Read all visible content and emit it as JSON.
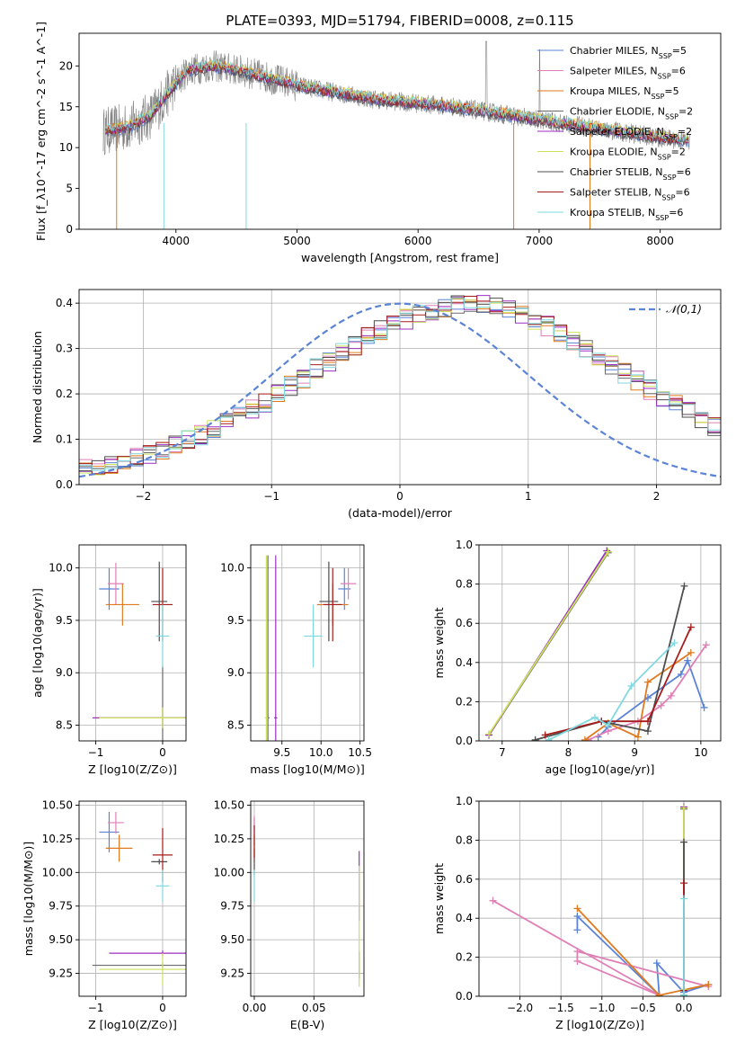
{
  "figure": {
    "title": "PLATE=0393, MJD=51794, FIBERID=0008, z=0.115"
  },
  "colors": {
    "Chabrier MILES": "#5b84d6",
    "Salpeter MILES": "#e07fb6",
    "Kroupa MILES": "#e07a1f",
    "Chabrier ELODIE": "#6a6a6a",
    "Salpeter ELODIE": "#9a2fc0",
    "Kroupa ELODIE": "#cde25a",
    "Chabrier STELIB": "#4d4d4d",
    "Salpeter STELIB": "#a61c1c",
    "Kroupa STELIB": "#80d9e0",
    "normal": "#5b84d6",
    "data": "#808080"
  },
  "chart_data": [
    {
      "id": "spectrum",
      "type": "line",
      "xlabel": "wavelength [Angstrom, rest frame]",
      "ylabel": "Flux [f_λ10^-17 erg cm^-2 s^-1 A^-1]",
      "xlim": [
        3200,
        8500
      ],
      "ylim": [
        0,
        24
      ],
      "xticks": [
        4000,
        5000,
        6000,
        7000,
        8000
      ],
      "yticks": [
        0,
        5,
        10,
        15,
        20
      ],
      "legend_position": "top-right",
      "series": [
        {
          "name": "Chabrier MILES, N_SSP=5"
        },
        {
          "name": "Salpeter MILES, N_SSP=6"
        },
        {
          "name": "Kroupa MILES, N_SSP=5"
        },
        {
          "name": "Chabrier ELODIE, N_SSP=2"
        },
        {
          "name": "Salpeter ELODIE, N_SSP=2"
        },
        {
          "name": "Kroupa ELODIE, N_SSP=2"
        },
        {
          "name": "Chabrier STELIB, N_SSP=6"
        },
        {
          "name": "Salpeter STELIB, N_SSP=6"
        },
        {
          "name": "Kroupa STELIB, N_SSP=6"
        }
      ],
      "model_continuum": {
        "x": [
          3400,
          3600,
          3800,
          3950,
          4100,
          4300,
          4500,
          4700,
          5000,
          5300,
          5600,
          6000,
          6300,
          6600,
          7000,
          7500,
          8000,
          8250
        ],
        "y": [
          12.0,
          12.5,
          14.0,
          17.0,
          19.5,
          20.0,
          19.5,
          18.8,
          17.6,
          16.8,
          16.0,
          15.4,
          15.0,
          14.3,
          13.4,
          12.3,
          11.2,
          10.8
        ]
      }
    },
    {
      "id": "residuals",
      "type": "step",
      "xlabel": "(data-model)/error",
      "ylabel": "Normed distribution",
      "xlim": [
        -2.5,
        2.5
      ],
      "ylim": [
        0,
        0.43
      ],
      "xticks": [
        -2,
        -1,
        0,
        1,
        2
      ],
      "yticks": [
        0.0,
        0.1,
        0.2,
        0.3,
        0.4
      ],
      "legend": "𝒩(0,1)",
      "bin_width": 0.1,
      "x0": -2.5,
      "base_counts": [
        0.035,
        0.038,
        0.045,
        0.052,
        0.06,
        0.068,
        0.078,
        0.09,
        0.1,
        0.11,
        0.122,
        0.135,
        0.15,
        0.165,
        0.18,
        0.2,
        0.218,
        0.235,
        0.255,
        0.272,
        0.29,
        0.305,
        0.325,
        0.34,
        0.355,
        0.365,
        0.375,
        0.385,
        0.392,
        0.398,
        0.4,
        0.398,
        0.393,
        0.385,
        0.375,
        0.362,
        0.35,
        0.335,
        0.318,
        0.3,
        0.282,
        0.262,
        0.245,
        0.228,
        0.21,
        0.192,
        0.176,
        0.16,
        0.145,
        0.13,
        0.118,
        0.106,
        0.094,
        0.084,
        0.074,
        0.066,
        0.058,
        0.052,
        0.046,
        0.04,
        0.036,
        0.032,
        0.029,
        0.026,
        0.024,
        0.022,
        0.02,
        0.018,
        0.017,
        0.016
      ]
    },
    {
      "id": "age_vs_Z",
      "type": "errorbar",
      "xlabel": "Z [log10(Z/Z⊙)]",
      "ylabel": "age [log10(age/yr)]",
      "xlim": [
        -1.25,
        0.35
      ],
      "ylim": [
        8.35,
        10.22
      ],
      "xticks": [
        -1,
        0
      ],
      "yticks": [
        8.5,
        9.0,
        9.5,
        10.0
      ],
      "points": [
        {
          "series": "Chabrier MILES",
          "x": -0.8,
          "y": 9.8,
          "xerr": 0.15,
          "yerr": 0.2
        },
        {
          "series": "Salpeter MILES",
          "x": -0.7,
          "y": 9.85,
          "xerr": 0.12,
          "yerr": 0.2
        },
        {
          "series": "Kroupa MILES",
          "x": -0.6,
          "y": 9.65,
          "xerr": 0.25,
          "yerr": 0.2
        },
        {
          "series": "Chabrier ELODIE",
          "x": 0.0,
          "y": 8.57,
          "xerr": 0.95,
          "yerr": 0.5
        },
        {
          "series": "Salpeter ELODIE",
          "x": 0.0,
          "y": 8.57,
          "xerr": 1.05,
          "yerr": 0.1
        },
        {
          "series": "Kroupa ELODIE",
          "x": 0.0,
          "y": 8.57,
          "xerr": 0.95,
          "yerr": 0.1
        },
        {
          "series": "Chabrier STELIB",
          "x": -0.05,
          "y": 9.68,
          "xerr": 0.12,
          "yerr": 0.38
        },
        {
          "series": "Salpeter STELIB",
          "x": 0.0,
          "y": 9.65,
          "xerr": 0.15,
          "yerr": 0.35
        },
        {
          "series": "Kroupa STELIB",
          "x": 0.0,
          "y": 9.35,
          "xerr": 0.1,
          "yerr": 0.3
        }
      ]
    },
    {
      "id": "age_vs_mass",
      "type": "errorbar",
      "xlabel": "mass [log10(M/M⊙)]",
      "ylabel": "",
      "xlim": [
        9.1,
        10.55
      ],
      "ylim": [
        8.35,
        10.22
      ],
      "xticks": [
        9.5,
        10.0,
        10.5
      ],
      "yticks": [
        8.5,
        9.0,
        9.5,
        10.0
      ],
      "points": [
        {
          "series": "Chabrier MILES",
          "x": 10.3,
          "y": 9.8,
          "xerr": 0.08,
          "yerr": 0.2
        },
        {
          "series": "Salpeter MILES",
          "x": 10.35,
          "y": 9.85,
          "xerr": 0.1,
          "yerr": 0.15
        },
        {
          "series": "Kroupa MILES",
          "x": 10.15,
          "y": 9.65,
          "xerr": 0.2,
          "yerr": 0.2
        },
        {
          "series": "Chabrier ELODIE",
          "x": 9.32,
          "y": 8.57,
          "xerr": 0.02,
          "yerr": 1.55
        },
        {
          "series": "Salpeter ELODIE",
          "x": 9.42,
          "y": 8.57,
          "xerr": 0.02,
          "yerr": 1.55
        },
        {
          "series": "Kroupa ELODIE",
          "x": 9.3,
          "y": 8.57,
          "xerr": 0.02,
          "yerr": 1.55
        },
        {
          "series": "Chabrier STELIB",
          "x": 10.1,
          "y": 9.68,
          "xerr": 0.12,
          "yerr": 0.38
        },
        {
          "series": "Salpeter STELIB",
          "x": 10.15,
          "y": 9.65,
          "xerr": 0.12,
          "yerr": 0.35
        },
        {
          "series": "Kroupa STELIB",
          "x": 9.9,
          "y": 9.35,
          "xerr": 0.12,
          "yerr": 0.3
        }
      ]
    },
    {
      "id": "weight_vs_age",
      "type": "line",
      "xlabel": "age [log10(age/yr)]",
      "ylabel": "mass weight",
      "xlim": [
        6.65,
        10.3
      ],
      "ylim": [
        0,
        1.0
      ],
      "xticks": [
        7,
        8,
        9,
        10
      ],
      "yticks": [
        0.0,
        0.2,
        0.4,
        0.6,
        0.8,
        1.0
      ],
      "series": [
        {
          "series": "Chabrier MILES",
          "x": [
            8.45,
            8.6,
            9.2,
            9.7,
            9.8,
            10.05
          ],
          "y": [
            0.02,
            0.07,
            0.22,
            0.34,
            0.41,
            0.17
          ]
        },
        {
          "series": "Salpeter MILES",
          "x": [
            8.3,
            8.6,
            9.05,
            9.4,
            9.55,
            10.08
          ],
          "y": [
            0.005,
            0.05,
            0.1,
            0.18,
            0.23,
            0.49
          ]
        },
        {
          "series": "Kroupa MILES",
          "x": [
            8.25,
            8.6,
            9.05,
            9.2,
            9.85
          ],
          "y": [
            0.005,
            0.09,
            0.02,
            0.3,
            0.45
          ]
        },
        {
          "series": "Chabrier ELODIE",
          "x": [
            6.8,
            8.6
          ],
          "y": [
            0.03,
            0.96
          ]
        },
        {
          "series": "Salpeter ELODIE",
          "x": [
            6.8,
            8.58
          ],
          "y": [
            0.03,
            0.97
          ]
        },
        {
          "series": "Kroupa ELODIE",
          "x": [
            6.8,
            8.6
          ],
          "y": [
            0.035,
            0.965
          ]
        },
        {
          "series": "Chabrier STELIB",
          "x": [
            7.5,
            8.5,
            9.2,
            9.75
          ],
          "y": [
            0.005,
            0.1,
            0.05,
            0.79
          ]
        },
        {
          "series": "Salpeter STELIB",
          "x": [
            7.65,
            8.5,
            9.2,
            9.85
          ],
          "y": [
            0.03,
            0.1,
            0.1,
            0.58
          ]
        },
        {
          "series": "Kroupa STELIB",
          "x": [
            7.7,
            8.4,
            8.6,
            8.95,
            9.6
          ],
          "y": [
            0.005,
            0.12,
            0.08,
            0.28,
            0.5
          ]
        }
      ]
    },
    {
      "id": "mass_vs_Z",
      "type": "errorbar",
      "xlabel": "Z [log10(Z/Z⊙)]",
      "ylabel": "mass [log10(M/M⊙)]",
      "xlim": [
        -1.25,
        0.35
      ],
      "ylim": [
        9.08,
        10.53
      ],
      "xticks": [
        -1,
        0
      ],
      "yticks": [
        9.25,
        9.5,
        9.75,
        10.0,
        10.25,
        10.5
      ],
      "points": [
        {
          "series": "Chabrier MILES",
          "x": -0.8,
          "y": 10.3,
          "xerr": 0.15,
          "yerr": 0.15
        },
        {
          "series": "Salpeter MILES",
          "x": -0.7,
          "y": 10.37,
          "xerr": 0.12,
          "yerr": 0.08
        },
        {
          "series": "Kroupa MILES",
          "x": -0.65,
          "y": 10.18,
          "xerr": 0.2,
          "yerr": 0.1
        },
        {
          "series": "Chabrier ELODIE",
          "x": 0.0,
          "y": 9.31,
          "xerr": 1.05,
          "yerr": 0.02
        },
        {
          "series": "Salpeter ELODIE",
          "x": 0.0,
          "y": 9.4,
          "xerr": 0.8,
          "yerr": 0.02
        },
        {
          "series": "Kroupa ELODIE",
          "x": 0.0,
          "y": 9.28,
          "xerr": 0.95,
          "yerr": 0.12
        },
        {
          "series": "Chabrier STELIB",
          "x": -0.05,
          "y": 10.08,
          "xerr": 0.12,
          "yerr": 0.02
        },
        {
          "series": "Salpeter STELIB",
          "x": 0.0,
          "y": 10.13,
          "xerr": 0.15,
          "yerr": 0.2
        },
        {
          "series": "Kroupa STELIB",
          "x": 0.0,
          "y": 9.9,
          "xerr": 0.1,
          "yerr": 0.12
        }
      ]
    },
    {
      "id": "mass_vs_EBV",
      "type": "errorbar",
      "xlabel": "E(B-V)",
      "ylabel": "",
      "xlim": [
        -0.003,
        0.092
      ],
      "ylim": [
        9.08,
        10.53
      ],
      "xticks": [
        0.0,
        0.05
      ],
      "yticks": [
        9.25,
        9.5,
        9.75,
        10.0,
        10.25,
        10.5
      ],
      "points": [
        {
          "series": "Chabrier MILES",
          "x": 0.0,
          "y": 10.3,
          "xerr": 0.0,
          "yerr": 0.1
        },
        {
          "series": "Salpeter MILES",
          "x": 0.0,
          "y": 10.37,
          "xerr": 0.0,
          "yerr": 0.05
        },
        {
          "series": "Kroupa MILES",
          "x": 0.0,
          "y": 10.18,
          "xerr": 0.0,
          "yerr": 0.1
        },
        {
          "series": "Chabrier ELODIE",
          "x": 0.088,
          "y": 9.31,
          "xerr": 0.0,
          "yerr": 0.1
        },
        {
          "series": "Salpeter ELODIE",
          "x": 0.088,
          "y": 9.9,
          "xerr": 0.0,
          "yerr": 0.26
        },
        {
          "series": "Kroupa ELODIE",
          "x": 0.088,
          "y": 9.6,
          "xerr": 0.0,
          "yerr": 0.45
        },
        {
          "series": "Chabrier STELIB",
          "x": 0.0,
          "y": 10.08,
          "xerr": 0.0,
          "yerr": 0.1
        },
        {
          "series": "Salpeter STELIB",
          "x": 0.0,
          "y": 10.23,
          "xerr": 0.0,
          "yerr": 0.12
        },
        {
          "series": "Kroupa STELIB",
          "x": 0.0,
          "y": 9.9,
          "xerr": 0.0,
          "yerr": 0.12
        }
      ]
    },
    {
      "id": "weight_vs_Z",
      "type": "line",
      "xlabel": "Z [log10(Z/Z⊙)]",
      "ylabel": "mass weight",
      "xlim": [
        -2.5,
        0.45
      ],
      "ylim": [
        0,
        1.0
      ],
      "xticks": [
        -2.0,
        -1.5,
        -1.0,
        -0.5,
        0.0
      ],
      "yticks": [
        0.0,
        0.2,
        0.4,
        0.6,
        0.8,
        1.0
      ],
      "series": [
        {
          "series": "Chabrier MILES",
          "x": [
            -1.3,
            -1.3,
            -0.3,
            -0.33,
            0.0,
            0.3
          ],
          "y": [
            0.34,
            0.41,
            0.005,
            0.17,
            0.02,
            0.06
          ]
        },
        {
          "series": "Salpeter MILES",
          "x": [
            -2.33,
            -0.3,
            -1.3,
            -1.3,
            0.3
          ],
          "y": [
            0.49,
            0.005,
            0.18,
            0.23,
            0.05
          ]
        },
        {
          "series": "Kroupa MILES",
          "x": [
            -1.3,
            -0.3,
            0.3
          ],
          "y": [
            0.45,
            0.005,
            0.06
          ]
        },
        {
          "series": "Chabrier ELODIE",
          "x": [
            0.0,
            0.0
          ],
          "y": [
            0.03,
            0.96
          ]
        },
        {
          "series": "Salpeter ELODIE",
          "x": [
            0.0,
            0.0
          ],
          "y": [
            0.03,
            0.97
          ]
        },
        {
          "series": "Kroupa ELODIE",
          "x": [
            0.0,
            0.0
          ],
          "y": [
            0.035,
            0.965
          ]
        },
        {
          "series": "Chabrier STELIB",
          "x": [
            0.0,
            0.0
          ],
          "y": [
            0.005,
            0.79
          ]
        },
        {
          "series": "Salpeter STELIB",
          "x": [
            0.0,
            0.0
          ],
          "y": [
            0.03,
            0.58
          ]
        },
        {
          "series": "Kroupa STELIB",
          "x": [
            0.0,
            0.0
          ],
          "y": [
            0.005,
            0.5
          ]
        }
      ]
    }
  ]
}
